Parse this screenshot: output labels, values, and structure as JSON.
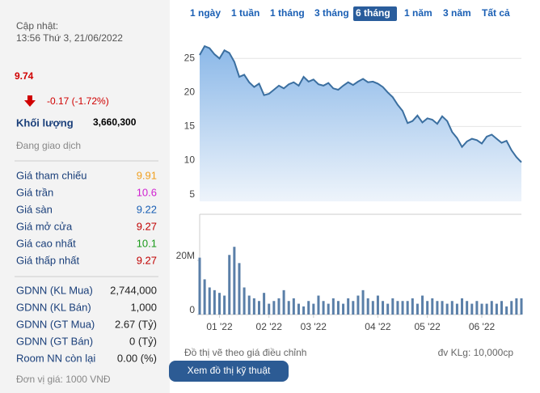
{
  "header": {
    "label": "Cập nhật:",
    "time": "13:56 Thứ 3, 21/06/2022"
  },
  "price": "9.74",
  "change": "-0.17 (-1.72%)",
  "volume": {
    "label": "Khối lượng",
    "value": "3,660,300"
  },
  "status": "Đang giao dịch",
  "prices": [
    {
      "label": "Giá tham chiếu",
      "value": "9.91",
      "color": "#f0a020"
    },
    {
      "label": "Giá trần",
      "value": "10.6",
      "color": "#d020d0"
    },
    {
      "label": "Giá sàn",
      "value": "9.22",
      "color": "#1a5fb4"
    },
    {
      "label": "Giá mở cửa",
      "value": "9.27",
      "color": "#c00000"
    },
    {
      "label": "Giá cao nhất",
      "value": "10.1",
      "color": "#1a9a1a"
    },
    {
      "label": "Giá thấp nhất",
      "value": "9.27",
      "color": "#c00000"
    }
  ],
  "foreign": [
    {
      "label": "GDNN (KL Mua)",
      "value": "2,744,000"
    },
    {
      "label": "GDNN (KL Bán)",
      "value": "1,000"
    },
    {
      "label": "GDNN (GT Mua)",
      "value": "2.67 (Tỷ)"
    },
    {
      "label": "GDNN (GT Bán)",
      "value": "0 (Tỷ)"
    },
    {
      "label": "Room NN còn lại",
      "value": "0.00 (%)"
    }
  ],
  "footnote": "Đơn vị giá: 1000 VNĐ",
  "tabs": {
    "items": [
      "1 ngày",
      "1 tuần",
      "1 tháng",
      "3 tháng",
      "6 tháng",
      "1 năm",
      "3 năm",
      "Tất cả"
    ],
    "active": 4
  },
  "chart_data": [
    {
      "type": "line",
      "color": "#3b6fa0",
      "xlim": [
        0,
        65
      ],
      "ylim": [
        4,
        28
      ],
      "yticks": [
        5,
        10,
        15,
        20,
        25
      ],
      "grid": true,
      "values": [
        25.5,
        26.8,
        26.5,
        25.6,
        25.0,
        26.2,
        25.8,
        24.5,
        22.3,
        22.6,
        21.5,
        20.8,
        21.3,
        19.6,
        19.8,
        20.4,
        21.0,
        20.6,
        21.2,
        21.5,
        21.0,
        22.3,
        21.6,
        21.9,
        21.2,
        21.0,
        21.4,
        20.6,
        20.4,
        21.0,
        21.5,
        21.1,
        21.6,
        22.0,
        21.5,
        21.6,
        21.3,
        20.8,
        20.0,
        19.3,
        18.2,
        17.3,
        15.5,
        15.8,
        16.6,
        15.6,
        16.2,
        16.0,
        15.4,
        16.5,
        15.8,
        14.2,
        13.3,
        12.0,
        12.8,
        13.2,
        13.0,
        12.5,
        13.5,
        13.8,
        13.2,
        12.6,
        12.9,
        11.5,
        10.5,
        9.74
      ]
    },
    {
      "type": "bar",
      "color": "#5a7fa8",
      "xlim": [
        0,
        65
      ],
      "ylim": [
        0,
        37000000
      ],
      "yticks": [
        0,
        {
          "value": 20000000,
          "label": "20M"
        }
      ],
      "xticks": [
        {
          "value": 4,
          "label": "01 '22"
        },
        {
          "value": 14,
          "label": "02 '22"
        },
        {
          "value": 23,
          "label": "03 '22"
        },
        {
          "value": 36,
          "label": "04 '22"
        },
        {
          "value": 46,
          "label": "05 '22"
        },
        {
          "value": 57,
          "label": "06 '22"
        }
      ],
      "values": [
        21000000,
        13000000,
        10000000,
        9000000,
        8000000,
        7000000,
        22000000,
        25000000,
        19000000,
        10000000,
        7000000,
        6000000,
        5000000,
        8000000,
        4000000,
        5000000,
        6000000,
        9000000,
        5000000,
        6000000,
        4000000,
        3000000,
        5000000,
        4000000,
        7000000,
        5000000,
        4000000,
        6000000,
        5000000,
        4000000,
        6000000,
        5000000,
        7000000,
        9000000,
        6000000,
        5000000,
        7000000,
        5000000,
        4000000,
        6000000,
        5000000,
        5000000,
        5000000,
        6000000,
        4000000,
        7000000,
        5000000,
        6000000,
        5000000,
        5000000,
        4000000,
        5000000,
        4000000,
        6000000,
        5000000,
        4000000,
        5000000,
        4000000,
        4000000,
        5000000,
        4000000,
        5000000,
        3000000,
        5000000,
        6000000,
        6000000
      ]
    }
  ],
  "notes": {
    "adjusted": "Đồ thị vẽ theo giá điều chỉnh",
    "unit": "đv KLg: 10,000cp"
  },
  "button": "Xem đồ thị kỹ thuật"
}
